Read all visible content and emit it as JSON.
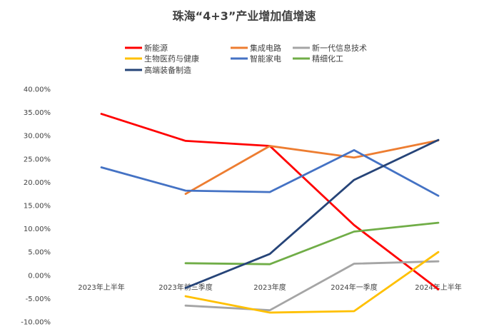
{
  "chart_data": {
    "type": "line",
    "title": "珠海“4+3”产业增加值增速",
    "xlabel": "",
    "ylabel": "",
    "categories": [
      "2023年上半年",
      "2023年前三季度",
      "2023年度",
      "2024年一季度",
      "2024年上半年"
    ],
    "ylim": [
      -0.1,
      0.4
    ],
    "yticks": [
      "-10.00%",
      "-5.00%",
      "0.00%",
      "5.00%",
      "10.00%",
      "15.00%",
      "20.00%",
      "25.00%",
      "30.00%",
      "35.00%",
      "40.00%"
    ],
    "ytick_values": [
      -0.1,
      -0.05,
      0.0,
      0.05,
      0.1,
      0.15,
      0.2,
      0.25,
      0.3,
      0.35,
      0.4
    ],
    "legend_position": "top",
    "grid": false,
    "series": [
      {
        "name": "新能源",
        "color": "#FF0000",
        "values": [
          0.347,
          0.289,
          0.278,
          0.108,
          -0.03
        ]
      },
      {
        "name": "集成电路",
        "color": "#ED7D31",
        "values": [
          null,
          0.175,
          0.278,
          0.253,
          0.29
        ]
      },
      {
        "name": "新一代信息技术",
        "color": "#A5A5A5",
        "values": [
          null,
          -0.065,
          -0.075,
          0.025,
          0.03
        ]
      },
      {
        "name": "生物医药与健康",
        "color": "#FFC000",
        "values": [
          null,
          -0.045,
          -0.08,
          -0.077,
          0.05
        ]
      },
      {
        "name": "智能家电",
        "color": "#4472C4",
        "values": [
          0.232,
          0.182,
          0.179,
          0.269,
          0.171
        ]
      },
      {
        "name": "精细化工",
        "color": "#70AD47",
        "values": [
          null,
          0.026,
          0.024,
          0.094,
          0.113
        ]
      },
      {
        "name": "高端装备制造",
        "color": "#264478",
        "values": [
          null,
          -0.027,
          0.046,
          0.205,
          0.291
        ]
      }
    ]
  }
}
